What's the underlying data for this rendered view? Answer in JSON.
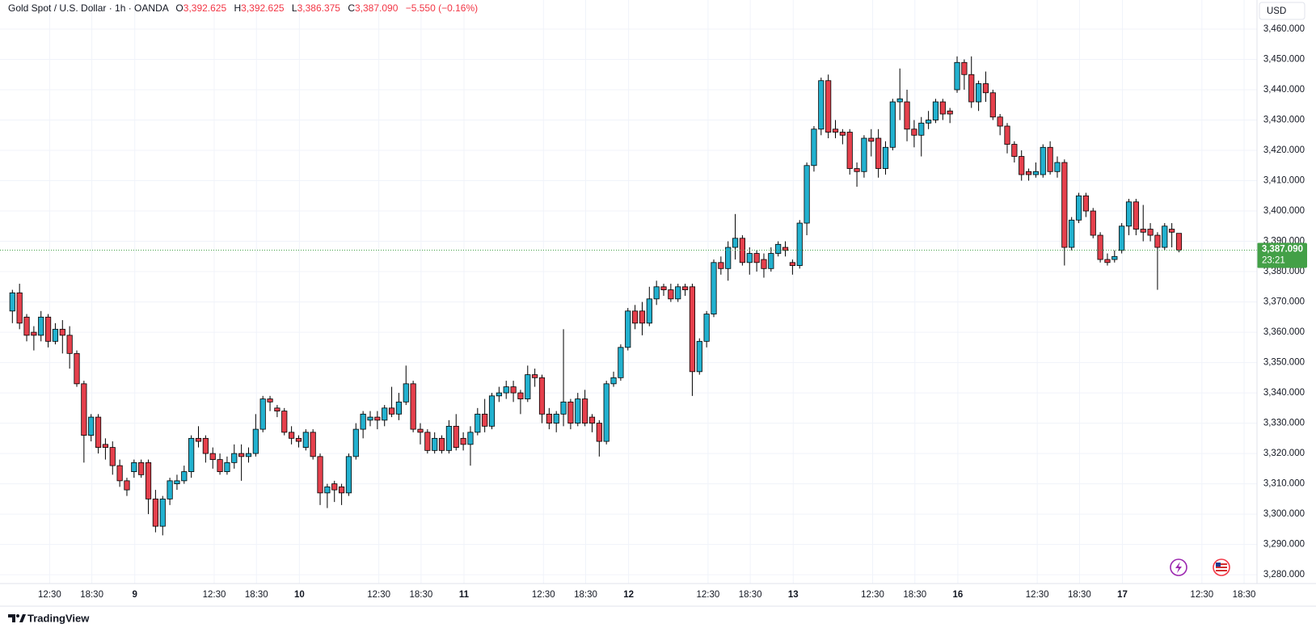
{
  "chart_data": {
    "type": "candlestick",
    "title": "Gold Spot / U.S. Dollar · 1h · OANDA",
    "ohlc_header": [
      {
        "label": "O",
        "value": "3,392.625"
      },
      {
        "label": "H",
        "value": "3,392.625"
      },
      {
        "label": "L",
        "value": "3,386.375"
      },
      {
        "label": "C",
        "value": "3,387.090"
      }
    ],
    "change": "−5.550 (−0.16%)",
    "currency": "USD",
    "open": [
      3367,
      3373,
      3365,
      3360,
      3359,
      3365,
      3357,
      3361,
      3359,
      3353,
      3343,
      3326,
      3332,
      3323,
      3322,
      3316,
      3311,
      3314,
      3317,
      3317,
      3305,
      3296,
      3305,
      3310,
      3311,
      3314,
      3325,
      3325,
      3320,
      3318,
      3314,
      3317,
      3320,
      3319,
      3320,
      3328,
      3338,
      3335,
      3334,
      3327,
      3325,
      3322,
      3327,
      3319,
      3307,
      3310,
      3309,
      3307,
      3319,
      3328,
      3331,
      3332,
      3331,
      3335,
      3333,
      3337,
      3343,
      3328,
      3327,
      3321,
      3325,
      3321,
      3329,
      3325,
      3323,
      3327,
      3333,
      3329,
      3339,
      3340,
      3342,
      3340,
      3338,
      3346,
      3345,
      3333,
      3330,
      3333,
      3337,
      3330,
      3338,
      3332,
      3330,
      3324,
      3343,
      3345,
      3355,
      3367,
      3367,
      3363,
      3371,
      3375,
      3374,
      3371,
      3375,
      3375,
      3347,
      3357,
      3366,
      3383,
      3381,
      3388,
      3391,
      3383,
      3386,
      3384,
      3381,
      3386,
      3388,
      3383,
      3382,
      3396,
      3415,
      3427,
      3443,
      3427,
      3426,
      3426,
      3414,
      3413,
      3424,
      3424,
      3414,
      3421,
      3436,
      3436,
      3427,
      3425,
      3429,
      3430,
      3436,
      3433,
      3440,
      3449,
      3445,
      3436,
      3442,
      3439,
      3431,
      3428,
      3422,
      3418,
      3413,
      3412,
      3412,
      3421,
      3413,
      3416,
      3388,
      3397,
      3405,
      3400,
      3392,
      3384,
      3384,
      3387,
      3395,
      3403,
      3394,
      3394,
      3392,
      3388,
      3394,
      3392.625
    ],
    "high": [
      3374,
      3376,
      3366,
      3362,
      3367,
      3366,
      3363,
      3364,
      3362,
      3354,
      3344,
      3333,
      3333,
      3325,
      3324,
      3318,
      3312,
      3318,
      3318,
      3318,
      3308,
      3306,
      3312,
      3313,
      3316,
      3326,
      3329,
      3326,
      3322,
      3320,
      3319,
      3323,
      3323,
      3322,
      3333,
      3339,
      3339,
      3336,
      3335,
      3329,
      3326,
      3328,
      3328,
      3320,
      3310,
      3311,
      3310,
      3320,
      3330,
      3334,
      3334,
      3334,
      3336,
      3342,
      3340,
      3349,
      3344,
      3330,
      3328,
      3327,
      3326,
      3331,
      3333,
      3327,
      3329,
      3335,
      3338,
      3340,
      3342,
      3344,
      3344,
      3341,
      3349,
      3348,
      3346,
      3335,
      3334,
      3361,
      3338,
      3340,
      3341,
      3333,
      3331,
      3344,
      3347,
      3356,
      3368,
      3369,
      3370,
      3375,
      3377,
      3376,
      3376,
      3376,
      3376,
      3376,
      3358,
      3367,
      3384,
      3385,
      3390,
      3399,
      3392,
      3388,
      3387,
      3386,
      3388,
      3390,
      3390,
      3384,
      3397,
      3416,
      3428,
      3444,
      3445,
      3430,
      3427,
      3427,
      3416,
      3425,
      3427,
      3427,
      3423,
      3437,
      3447,
      3440,
      3430,
      3431,
      3433,
      3437,
      3437,
      3434,
      3451,
      3450,
      3451,
      3443,
      3446,
      3440,
      3432,
      3429,
      3423,
      3420,
      3414,
      3416,
      3422,
      3423,
      3418,
      3417,
      3398,
      3406,
      3406,
      3401,
      3393,
      3386,
      3387,
      3396,
      3404,
      3404,
      3402,
      3396,
      3393,
      3396,
      3396,
      3392.625
    ],
    "low": [
      3363,
      3361,
      3357,
      3354,
      3357,
      3355,
      3356,
      3353,
      3348,
      3342,
      3317,
      3324,
      3320,
      3318,
      3313,
      3309,
      3306,
      3312,
      3312,
      3300,
      3294,
      3293,
      3303,
      3308,
      3310,
      3312,
      3322,
      3317,
      3315,
      3313,
      3313,
      3315,
      3311,
      3317,
      3319,
      3327,
      3334,
      3332,
      3326,
      3323,
      3322,
      3321,
      3318,
      3303,
      3302,
      3304,
      3303,
      3306,
      3318,
      3325,
      3329,
      3328,
      3329,
      3332,
      3331,
      3336,
      3327,
      3323,
      3320,
      3320,
      3320,
      3320,
      3321,
      3321,
      3316,
      3326,
      3327,
      3328,
      3337,
      3338,
      3337,
      3333,
      3337,
      3342,
      3330,
      3328,
      3327,
      3329,
      3328,
      3329,
      3329,
      3327,
      3319,
      3323,
      3342,
      3344,
      3354,
      3361,
      3359,
      3362,
      3369,
      3372,
      3370,
      3370,
      3372,
      3339,
      3346,
      3355,
      3365,
      3379,
      3377,
      3384,
      3382,
      3379,
      3380,
      3378,
      3380,
      3385,
      3385,
      3379,
      3381,
      3392,
      3413,
      3425,
      3424,
      3424,
      3422,
      3412,
      3408,
      3411,
      3418,
      3411,
      3412,
      3420,
      3430,
      3423,
      3421,
      3418,
      3427,
      3429,
      3430,
      3429,
      3439,
      3440,
      3434,
      3433,
      3436,
      3430,
      3425,
      3419,
      3416,
      3410,
      3410,
      3411,
      3411,
      3412,
      3411,
      3382,
      3387,
      3396,
      3398,
      3391,
      3383,
      3382,
      3383,
      3386,
      3392,
      3392,
      3390,
      3390,
      3374,
      3387,
      3388,
      3386.375
    ],
    "close": [
      3373,
      3363,
      3359,
      3359,
      3365,
      3357,
      3361,
      3359,
      3353,
      3343,
      3326,
      3332,
      3322,
      3322,
      3316,
      3311,
      3308,
      3317,
      3313,
      3305,
      3296,
      3305,
      3311,
      3311,
      3314,
      3325,
      3324,
      3320,
      3318,
      3314,
      3317,
      3320,
      3319,
      3320,
      3328,
      3338,
      3337,
      3334,
      3327,
      3325,
      3324,
      3327,
      3319,
      3307,
      3309,
      3308,
      3307,
      3319,
      3328,
      3333,
      3332,
      3331,
      3335,
      3333,
      3337,
      3343,
      3328,
      3327,
      3321,
      3325,
      3321,
      3329,
      3322,
      3323,
      3327,
      3333,
      3329,
      3339,
      3340,
      3342,
      3340,
      3338,
      3346,
      3345,
      3333,
      3330,
      3333,
      3337,
      3330,
      3338,
      3330,
      3330,
      3324,
      3343,
      3345,
      3355,
      3367,
      3363,
      3363,
      3371,
      3375,
      3374,
      3371,
      3375,
      3374,
      3347,
      3357,
      3366,
      3383,
      3381,
      3388,
      3391,
      3383,
      3386,
      3383,
      3381,
      3386,
      3389,
      3387,
      3382,
      3396,
      3415,
      3427,
      3443,
      3426,
      3426,
      3425,
      3414,
      3413,
      3424,
      3423,
      3414,
      3421,
      3436,
      3437,
      3427,
      3425,
      3429,
      3430,
      3436,
      3432,
      3432,
      3449,
      3445,
      3436,
      3442,
      3439,
      3431,
      3428,
      3422,
      3418,
      3412,
      3412,
      3413,
      3421,
      3413,
      3416,
      3388,
      3397,
      3405,
      3400,
      3392,
      3384,
      3383,
      3385,
      3395,
      3403,
      3394,
      3393,
      3392,
      3388,
      3395,
      3393,
      3387.09
    ],
    "up_color": "#22b1cf",
    "down_color": "#e5404c",
    "outline_color": "#000000",
    "last_price": 3387.09,
    "last_price_label": "3,387.090",
    "countdown": "23:21",
    "last_price_color": "#43a047",
    "ylim": [
      3277.1,
      3469.6
    ],
    "yticks": [
      {
        "value": 3280,
        "label": "3,280.000"
      },
      {
        "value": 3290,
        "label": "3,290.000"
      },
      {
        "value": 3300,
        "label": "3,300.000"
      },
      {
        "value": 3310,
        "label": "3,310.000"
      },
      {
        "value": 3320,
        "label": "3,320.000"
      },
      {
        "value": 3330,
        "label": "3,330.000"
      },
      {
        "value": 3340,
        "label": "3,340.000"
      },
      {
        "value": 3350,
        "label": "3,350.000"
      },
      {
        "value": 3360,
        "label": "3,360.000"
      },
      {
        "value": 3370,
        "label": "3,370.000"
      },
      {
        "value": 3380,
        "label": "3,380.000"
      },
      {
        "value": 3390,
        "label": "3,390.000"
      },
      {
        "value": 3400,
        "label": "3,400.000"
      },
      {
        "value": 3410,
        "label": "3,410.000"
      },
      {
        "value": 3420,
        "label": "3,420.000"
      },
      {
        "value": 3430,
        "label": "3,430.000"
      },
      {
        "value": 3440,
        "label": "3,440.000"
      },
      {
        "value": 3450,
        "label": "3,450.000"
      },
      {
        "value": 3460,
        "label": "3,460.000"
      }
    ],
    "xlim": [
      -0.6,
      173.9
    ],
    "xticks": [
      {
        "value": 5.2,
        "label": "12:30"
      },
      {
        "value": 11.1,
        "label": "18:30"
      },
      {
        "value": 17.1,
        "label": "9"
      },
      {
        "value": 28.2,
        "label": "12:30"
      },
      {
        "value": 34.1,
        "label": "18:30"
      },
      {
        "value": 40.1,
        "label": "10"
      },
      {
        "value": 51.2,
        "label": "12:30"
      },
      {
        "value": 57.1,
        "label": "18:30"
      },
      {
        "value": 63.1,
        "label": "11"
      },
      {
        "value": 74.2,
        "label": "12:30"
      },
      {
        "value": 80.1,
        "label": "18:30"
      },
      {
        "value": 86.1,
        "label": "12"
      },
      {
        "value": 97.2,
        "label": "12:30"
      },
      {
        "value": 103.1,
        "label": "18:30"
      },
      {
        "value": 109.1,
        "label": "13"
      },
      {
        "value": 120.2,
        "label": "12:30"
      },
      {
        "value": 126.1,
        "label": "18:30"
      },
      {
        "value": 132.1,
        "label": "16"
      },
      {
        "value": 143.2,
        "label": "12:30"
      },
      {
        "value": 149.1,
        "label": "18:30"
      },
      {
        "value": 155.1,
        "label": "17"
      },
      {
        "value": 166.2,
        "label": "12:30"
      },
      {
        "value": 172.1,
        "label": "18:30"
      }
    ],
    "grid": true
  },
  "footer": {
    "brand": "TradingView"
  }
}
